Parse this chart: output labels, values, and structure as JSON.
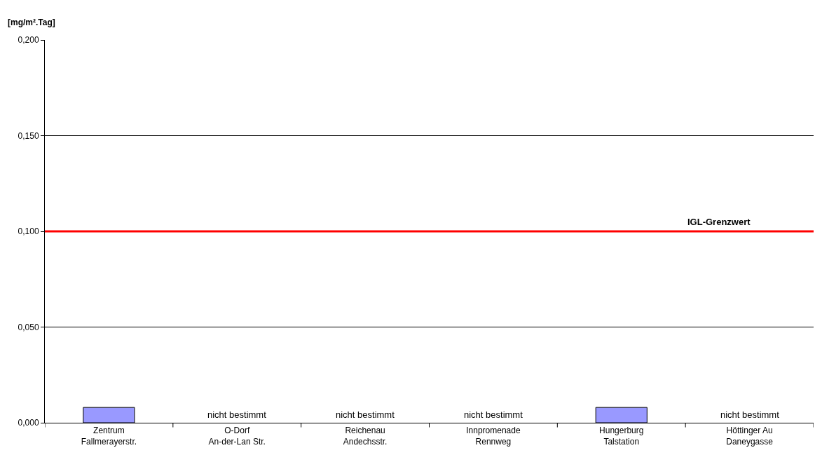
{
  "chart_data": {
    "type": "bar",
    "ylabel": "[mg/m².Tag]",
    "categories": [
      "Zentrum\nFallmerayerstr.",
      "O-Dorf\nAn-der-Lan Str.",
      "Reichenau\nAndechsstr.",
      "Innpromenade\nRennweg",
      "Hungerburg\nTalstation",
      "Höttinger Au\nDaneygasse"
    ],
    "values": [
      0.008,
      null,
      null,
      null,
      0.008,
      null
    ],
    "value_labels": [
      null,
      "nicht bestimmt",
      "nicht bestimmt",
      "nicht bestimmt",
      null,
      "nicht bestimmt"
    ],
    "color": "#9999ff",
    "ylim": [
      0,
      0.2
    ],
    "yticks": [
      {
        "value": 0,
        "label": "0,000"
      },
      {
        "value": 0.05,
        "label": "0,050"
      },
      {
        "value": 0.1,
        "label": "0,100"
      },
      {
        "value": 0.15,
        "label": "0,150"
      },
      {
        "value": 0.2,
        "label": "0,200"
      }
    ],
    "ref_lines": [
      {
        "axis": "y",
        "value": 0.1,
        "label": "IGL-Grenzwert",
        "color": "#ff0000"
      }
    ],
    "grid": "y",
    "legend": false
  }
}
